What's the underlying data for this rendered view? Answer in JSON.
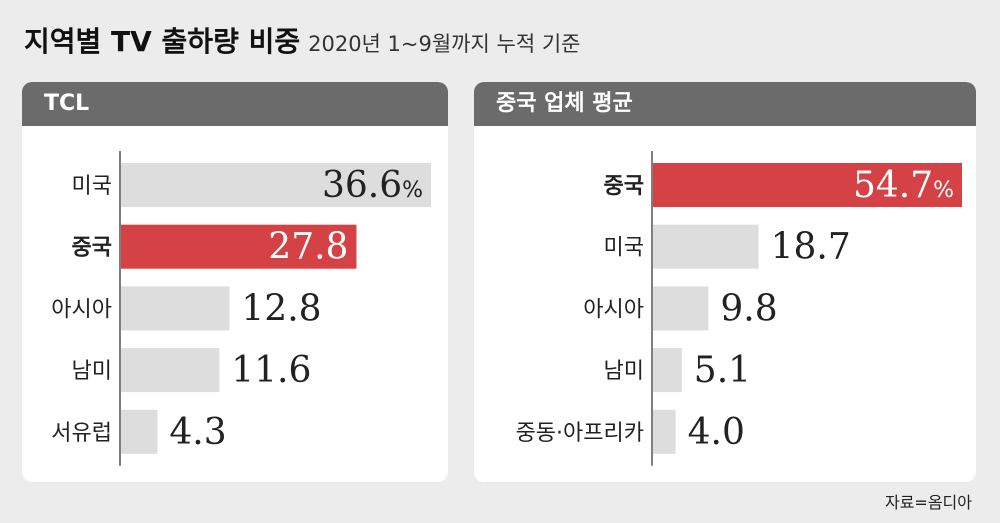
{
  "title": "지역별 TV 출하량 비중",
  "subtitle": "2020년 1~9월까지 누적 기준",
  "source": "자료=옴디아",
  "colors": {
    "highlight": "#d44245",
    "bar": "#dddddd",
    "header": "#6b6b6b"
  },
  "chart_data": [
    {
      "type": "bar",
      "orientation": "horizontal",
      "title": "TCL",
      "unit": "%",
      "categories": [
        "미국",
        "중국",
        "아시아",
        "남미",
        "서유럽"
      ],
      "values": [
        36.6,
        27.8,
        12.8,
        11.6,
        4.3
      ],
      "labels": [
        "36.6",
        "27.8",
        "12.8",
        "11.6",
        "4.3"
      ],
      "highlight": "중국",
      "xlim": [
        0,
        36.6
      ]
    },
    {
      "type": "bar",
      "orientation": "horizontal",
      "title": "중국 업체 평균",
      "unit": "%",
      "categories": [
        "중국",
        "미국",
        "아시아",
        "남미",
        "중동·아프리카"
      ],
      "values": [
        54.7,
        18.7,
        9.8,
        5.1,
        4.0
      ],
      "labels": [
        "54.7",
        "18.7",
        "9.8",
        "5.1",
        "4.0"
      ],
      "highlight": "중국",
      "xlim": [
        0,
        54.7
      ]
    }
  ]
}
